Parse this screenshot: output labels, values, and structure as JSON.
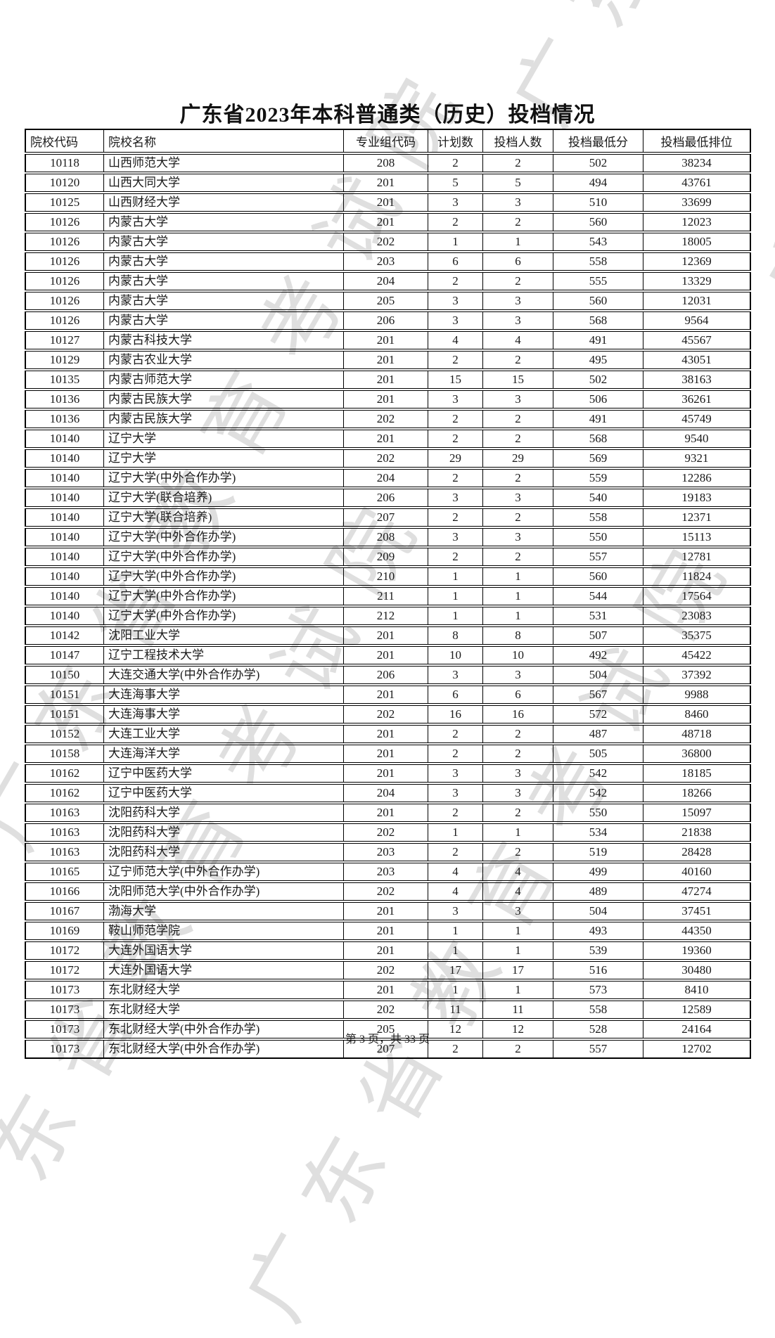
{
  "page": {
    "title": "广东省2023年本科普通类（历史）投档情况",
    "footer": "第 3 页，共 33 页",
    "watermark_text": "广东省教育考试院",
    "watermark_color": "#dfdfdf"
  },
  "table": {
    "headers": [
      "院校代码",
      "院校名称",
      "专业组代码",
      "计划数",
      "投档人数",
      "投档最低分",
      "投档最低排位"
    ],
    "rows": [
      [
        "10118",
        "山西师范大学",
        "208",
        "2",
        "2",
        "502",
        "38234"
      ],
      [
        "10120",
        "山西大同大学",
        "201",
        "5",
        "5",
        "494",
        "43761"
      ],
      [
        "10125",
        "山西财经大学",
        "201",
        "3",
        "3",
        "510",
        "33699"
      ],
      [
        "10126",
        "内蒙古大学",
        "201",
        "2",
        "2",
        "560",
        "12023"
      ],
      [
        "10126",
        "内蒙古大学",
        "202",
        "1",
        "1",
        "543",
        "18005"
      ],
      [
        "10126",
        "内蒙古大学",
        "203",
        "6",
        "6",
        "558",
        "12369"
      ],
      [
        "10126",
        "内蒙古大学",
        "204",
        "2",
        "2",
        "555",
        "13329"
      ],
      [
        "10126",
        "内蒙古大学",
        "205",
        "3",
        "3",
        "560",
        "12031"
      ],
      [
        "10126",
        "内蒙古大学",
        "206",
        "3",
        "3",
        "568",
        "9564"
      ],
      [
        "10127",
        "内蒙古科技大学",
        "201",
        "4",
        "4",
        "491",
        "45567"
      ],
      [
        "10129",
        "内蒙古农业大学",
        "201",
        "2",
        "2",
        "495",
        "43051"
      ],
      [
        "10135",
        "内蒙古师范大学",
        "201",
        "15",
        "15",
        "502",
        "38163"
      ],
      [
        "10136",
        "内蒙古民族大学",
        "201",
        "3",
        "3",
        "506",
        "36261"
      ],
      [
        "10136",
        "内蒙古民族大学",
        "202",
        "2",
        "2",
        "491",
        "45749"
      ],
      [
        "10140",
        "辽宁大学",
        "201",
        "2",
        "2",
        "568",
        "9540"
      ],
      [
        "10140",
        "辽宁大学",
        "202",
        "29",
        "29",
        "569",
        "9321"
      ],
      [
        "10140",
        "辽宁大学(中外合作办学)",
        "204",
        "2",
        "2",
        "559",
        "12286"
      ],
      [
        "10140",
        "辽宁大学(联合培养)",
        "206",
        "3",
        "3",
        "540",
        "19183"
      ],
      [
        "10140",
        "辽宁大学(联合培养)",
        "207",
        "2",
        "2",
        "558",
        "12371"
      ],
      [
        "10140",
        "辽宁大学(中外合作办学)",
        "208",
        "3",
        "3",
        "550",
        "15113"
      ],
      [
        "10140",
        "辽宁大学(中外合作办学)",
        "209",
        "2",
        "2",
        "557",
        "12781"
      ],
      [
        "10140",
        "辽宁大学(中外合作办学)",
        "210",
        "1",
        "1",
        "560",
        "11824"
      ],
      [
        "10140",
        "辽宁大学(中外合作办学)",
        "211",
        "1",
        "1",
        "544",
        "17564"
      ],
      [
        "10140",
        "辽宁大学(中外合作办学)",
        "212",
        "1",
        "1",
        "531",
        "23083"
      ],
      [
        "10142",
        "沈阳工业大学",
        "201",
        "8",
        "8",
        "507",
        "35375"
      ],
      [
        "10147",
        "辽宁工程技术大学",
        "201",
        "10",
        "10",
        "492",
        "45422"
      ],
      [
        "10150",
        "大连交通大学(中外合作办学)",
        "206",
        "3",
        "3",
        "504",
        "37392"
      ],
      [
        "10151",
        "大连海事大学",
        "201",
        "6",
        "6",
        "567",
        "9988"
      ],
      [
        "10151",
        "大连海事大学",
        "202",
        "16",
        "16",
        "572",
        "8460"
      ],
      [
        "10152",
        "大连工业大学",
        "201",
        "2",
        "2",
        "487",
        "48718"
      ],
      [
        "10158",
        "大连海洋大学",
        "201",
        "2",
        "2",
        "505",
        "36800"
      ],
      [
        "10162",
        "辽宁中医药大学",
        "201",
        "3",
        "3",
        "542",
        "18185"
      ],
      [
        "10162",
        "辽宁中医药大学",
        "204",
        "3",
        "3",
        "542",
        "18266"
      ],
      [
        "10163",
        "沈阳药科大学",
        "201",
        "2",
        "2",
        "550",
        "15097"
      ],
      [
        "10163",
        "沈阳药科大学",
        "202",
        "1",
        "1",
        "534",
        "21838"
      ],
      [
        "10163",
        "沈阳药科大学",
        "203",
        "2",
        "2",
        "519",
        "28428"
      ],
      [
        "10165",
        "辽宁师范大学(中外合作办学)",
        "203",
        "4",
        "4",
        "499",
        "40160"
      ],
      [
        "10166",
        "沈阳师范大学(中外合作办学)",
        "202",
        "4",
        "4",
        "489",
        "47274"
      ],
      [
        "10167",
        "渤海大学",
        "201",
        "3",
        "3",
        "504",
        "37451"
      ],
      [
        "10169",
        "鞍山师范学院",
        "201",
        "1",
        "1",
        "493",
        "44350"
      ],
      [
        "10172",
        "大连外国语大学",
        "201",
        "1",
        "1",
        "539",
        "19360"
      ],
      [
        "10172",
        "大连外国语大学",
        "202",
        "17",
        "17",
        "516",
        "30480"
      ],
      [
        "10173",
        "东北财经大学",
        "201",
        "1",
        "1",
        "573",
        "8410"
      ],
      [
        "10173",
        "东北财经大学",
        "202",
        "11",
        "11",
        "558",
        "12589"
      ],
      [
        "10173",
        "东北财经大学(中外合作办学)",
        "205",
        "12",
        "12",
        "528",
        "24164"
      ],
      [
        "10173",
        "东北财经大学(中外合作办学)",
        "207",
        "2",
        "2",
        "557",
        "12702"
      ]
    ]
  }
}
